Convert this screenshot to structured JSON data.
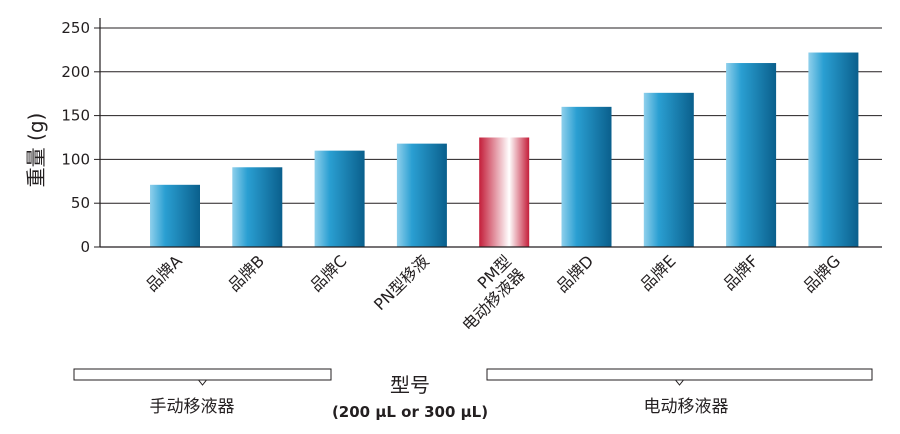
{
  "chart_data": {
    "type": "bar",
    "categories": [
      [
        "品牌A"
      ],
      [
        "品牌B"
      ],
      [
        "品牌C"
      ],
      [
        "PN型移液"
      ],
      [
        "PM型",
        "电动移液器"
      ],
      [
        "品牌D"
      ],
      [
        "品牌E"
      ],
      [
        "品牌F"
      ],
      [
        "品牌G"
      ]
    ],
    "values": [
      71,
      91,
      110,
      118,
      125,
      160,
      176,
      210,
      222
    ],
    "highlight_index": 4,
    "ylabel": "重量 (g)",
    "xlabel": "型号",
    "xlabel_sub": "(200 µL or 300 µL)",
    "ylim": [
      0,
      250
    ],
    "yticks": [
      0,
      50,
      100,
      150,
      200,
      250
    ],
    "grid": true,
    "groups": [
      {
        "label": "手动移液器",
        "from": 0,
        "to": 2
      },
      {
        "label": "电动移液器",
        "from": 5,
        "to": 8
      }
    ],
    "colors": {
      "bar_light": "#8fd0ec",
      "bar_mid": "#2a9fd2",
      "bar_dark": "#0a5f8c",
      "highlight_light": "#ffffff",
      "highlight_dark": "#c41e3a",
      "grid": "#231f20",
      "bracket": "#231f20"
    }
  }
}
